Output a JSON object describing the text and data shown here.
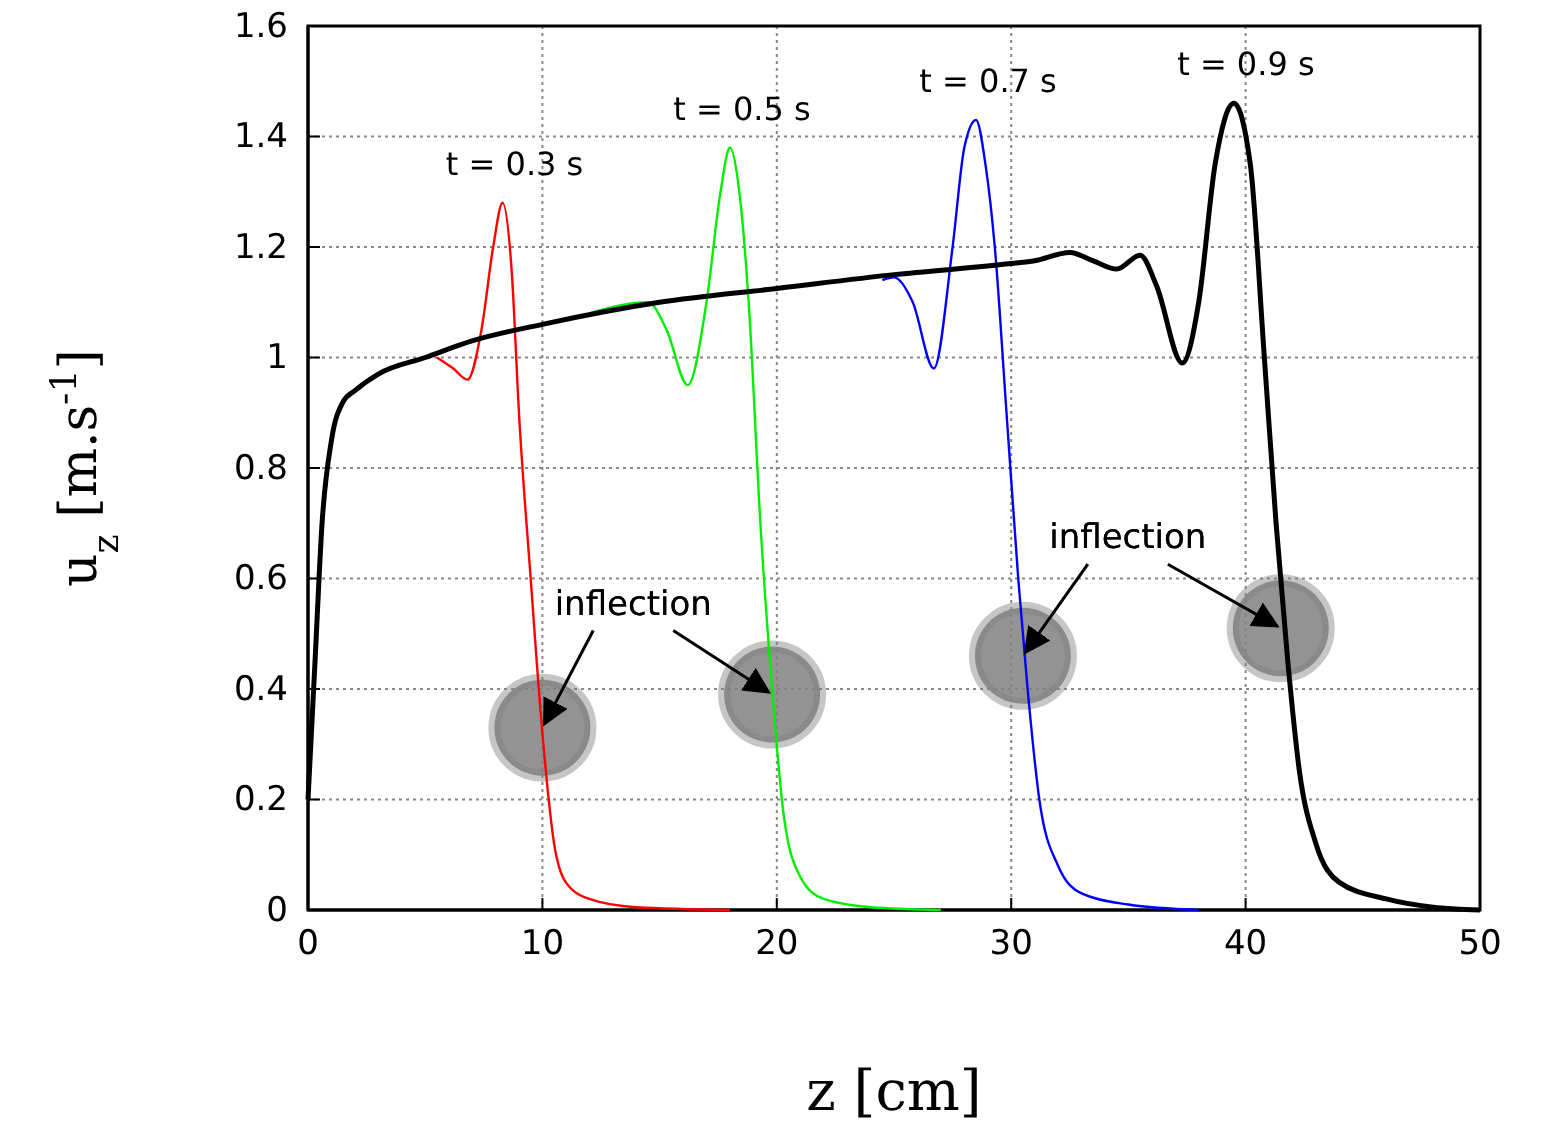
{
  "chart_data": {
    "type": "line",
    "xlabel": "z [cm]",
    "ylabel": "u$_{z}$ [m.s$^{-1}$]",
    "xlim": [
      0,
      50
    ],
    "ylim": [
      0,
      1.6
    ],
    "xticks": [
      0,
      10,
      20,
      30,
      40,
      50
    ],
    "yticks": [
      0,
      0.2,
      0.4,
      0.6,
      0.8,
      1,
      1.2,
      1.4,
      1.6
    ],
    "grid": true,
    "legend": false,
    "line_style": "solid",
    "series": [
      {
        "name": "t = 0.3 s",
        "color": "#ff0000",
        "x": [
          5.5,
          6.2,
          6.8,
          7.4,
          7.9,
          8.3,
          8.7,
          9,
          9.5,
          10,
          10.5,
          11,
          12,
          14,
          18
        ],
        "values": [
          1.0,
          0.98,
          0.96,
          1.05,
          1.2,
          1.28,
          1.15,
          0.9,
          0.6,
          0.32,
          0.12,
          0.05,
          0.02,
          0.005,
          0
        ]
      },
      {
        "name": "t = 0.5 s",
        "color": "#00ee00",
        "x": [
          12,
          14.5,
          15.3,
          16.2,
          17,
          17.6,
          18,
          18.4,
          18.8,
          19.3,
          19.8,
          20.3,
          21,
          22,
          24,
          27
        ],
        "values": [
          1.08,
          1.1,
          1.05,
          0.95,
          1.1,
          1.3,
          1.38,
          1.3,
          1.1,
          0.7,
          0.4,
          0.17,
          0.06,
          0.02,
          0.005,
          0
        ]
      },
      {
        "name": "t = 0.7 s",
        "color": "#0000ff",
        "x": [
          24.5,
          25,
          25.8,
          26.7,
          27.5,
          28,
          28.5,
          28.9,
          29.3,
          29.8,
          30.3,
          30.7,
          31.2,
          32,
          33,
          35,
          38
        ],
        "values": [
          1.14,
          1.145,
          1.1,
          0.98,
          1.2,
          1.38,
          1.43,
          1.35,
          1.2,
          0.9,
          0.6,
          0.4,
          0.2,
          0.08,
          0.03,
          0.01,
          0
        ]
      },
      {
        "name": "t = 0.9 s",
        "color": "#000000",
        "x": [
          0,
          0.3,
          0.6,
          1,
          1.5,
          2,
          3,
          5,
          7,
          10,
          15,
          20,
          25,
          30,
          31,
          32.5,
          33.5,
          34.5,
          35.5,
          36.2,
          37.3,
          38,
          38.7,
          39.5,
          40.2,
          40.8,
          41.3,
          41.8,
          42.3,
          43,
          44,
          46,
          48,
          50
        ],
        "values": [
          0.2,
          0.45,
          0.7,
          0.85,
          0.92,
          0.94,
          0.97,
          1.0,
          1.03,
          1.06,
          1.1,
          1.125,
          1.15,
          1.17,
          1.175,
          1.19,
          1.175,
          1.16,
          1.185,
          1.13,
          0.99,
          1.1,
          1.35,
          1.46,
          1.35,
          1.0,
          0.7,
          0.45,
          0.25,
          0.12,
          0.05,
          0.02,
          0.005,
          0
        ]
      },
      {
        "type": "scatter",
        "color": "#808080",
        "marker": "circle",
        "x": [
          10,
          19.8,
          30.5,
          41.5
        ],
        "values": [
          0.33,
          0.39,
          0.46,
          0.51
        ]
      }
    ],
    "annotations": [
      {
        "text": "inflection",
        "x": 10,
        "y": 0.33
      },
      {
        "text": "inflection",
        "x": 30.5,
        "y": 0.46
      }
    ]
  }
}
